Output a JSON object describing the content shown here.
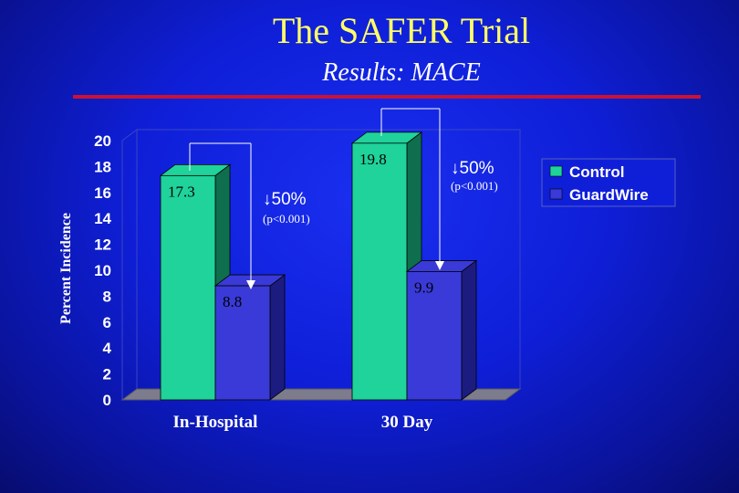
{
  "slide": {
    "title": "The SAFER Trial",
    "subtitle": "Results: MACE"
  },
  "colors": {
    "control": "#1fd39a",
    "control_side": "#0e6e4e",
    "guardwire": "#3a3ad8",
    "guardwire_side": "#1c1c80",
    "rule": "#cc1133",
    "title": "#ffff66"
  },
  "chart_data": {
    "type": "bar",
    "categories": [
      "In-Hospital",
      "30 Day"
    ],
    "series": [
      {
        "name": "Control",
        "values": [
          17.3,
          19.8
        ]
      },
      {
        "name": "GuardWire",
        "values": [
          8.8,
          9.9
        ]
      }
    ],
    "data_labels": [
      [
        "17.3",
        "8.8"
      ],
      [
        "19.8",
        "9.9"
      ]
    ],
    "ylabel": "Percent Incidence",
    "ylim": [
      0,
      20
    ],
    "yticks": [
      0,
      2,
      4,
      6,
      8,
      10,
      12,
      14,
      16,
      18,
      20
    ],
    "grid": false,
    "legend_position": "right",
    "annotations": [
      {
        "category": "In-Hospital",
        "reduction": "↓50%",
        "p_value": "(p<0.001)"
      },
      {
        "category": "30 Day",
        "reduction": "↓50%",
        "p_value": "(p<0.001)"
      }
    ]
  }
}
